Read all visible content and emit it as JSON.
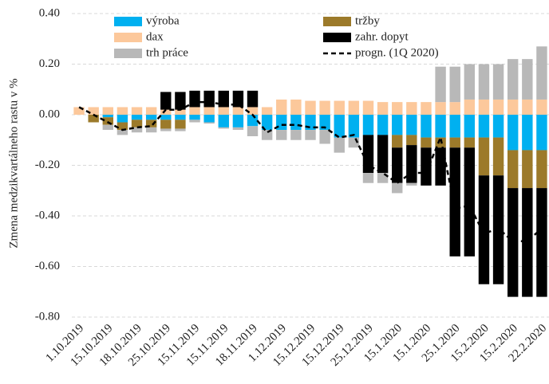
{
  "chart_data": {
    "type": "bar",
    "stacked": true,
    "y_label": "Zmena medzikvartálneho rastu v %",
    "categories": [
      "1.10.2019",
      null,
      "15.10.2019",
      null,
      "18.10.2019",
      null,
      "25.10.2019",
      null,
      "15.11.2019",
      null,
      "15.11.2019",
      null,
      "18.11.2019",
      null,
      "1.12.2019",
      null,
      "15.12.2019",
      null,
      "15.12.2019",
      null,
      "25.12.2019",
      null,
      "15.1.2020",
      null,
      "15.1.2020",
      null,
      "25.1.2020",
      null,
      "15.2.2020",
      null,
      "15.2.2020",
      null,
      "22.2.2020"
    ],
    "series": [
      {
        "name": "výroba",
        "color": "#00b0f0",
        "values": [
          0,
          0,
          -0.01,
          -0.03,
          -0.02,
          -0.02,
          -0.02,
          -0.02,
          -0.02,
          -0.03,
          -0.05,
          -0.05,
          -0.045,
          -0.06,
          -0.06,
          -0.06,
          -0.06,
          -0.06,
          -0.09,
          -0.09,
          -0.08,
          -0.08,
          -0.08,
          -0.08,
          -0.09,
          -0.09,
          -0.09,
          -0.09,
          -0.09,
          -0.09,
          -0.14,
          -0.14,
          -0.14
        ]
      },
      {
        "name": "tržby",
        "color": "#9c7a2a",
        "values": [
          0,
          -0.03,
          -0.03,
          -0.03,
          -0.03,
          -0.03,
          -0.035,
          -0.035,
          0,
          0,
          0,
          0,
          0,
          0,
          0,
          0,
          0,
          0,
          0,
          0,
          0,
          0,
          -0.05,
          -0.04,
          -0.04,
          -0.04,
          -0.04,
          -0.04,
          -0.15,
          -0.15,
          -0.15,
          -0.15,
          -0.15
        ]
      },
      {
        "name": "dax",
        "color": "#fcc89b",
        "values": [
          0.03,
          0.03,
          0.03,
          0.03,
          0.03,
          0.03,
          0.02,
          0.02,
          0.03,
          0.03,
          0.03,
          0.03,
          0.03,
          0.03,
          0.06,
          0.06,
          0.055,
          0.055,
          0.055,
          0.055,
          0.055,
          0.05,
          0.05,
          0.05,
          0.05,
          0.05,
          0.05,
          0.06,
          0.06,
          0.06,
          0.06,
          0.06,
          0.06
        ]
      },
      {
        "name": "zahr. dopyt",
        "color": "#000000",
        "values": [
          0,
          0,
          0,
          0,
          0,
          0,
          0.07,
          0.07,
          0.065,
          0.065,
          0.065,
          0.065,
          0.065,
          0,
          0,
          0,
          0,
          0,
          0,
          0,
          -0.15,
          -0.15,
          -0.14,
          -0.15,
          -0.15,
          -0.15,
          -0.43,
          -0.43,
          -0.43,
          -0.43,
          -0.43,
          -0.43,
          -0.43
        ]
      },
      {
        "name": "trh práce",
        "color": "#b8b8b8",
        "values": [
          0,
          0,
          -0.02,
          -0.02,
          -0.02,
          -0.02,
          -0.01,
          -0.01,
          -0.01,
          -0.005,
          -0.005,
          -0.01,
          -0.04,
          -0.04,
          -0.04,
          -0.04,
          -0.04,
          -0.055,
          -0.06,
          -0.04,
          -0.04,
          -0.04,
          -0.04,
          -0.01,
          0,
          0.14,
          0.14,
          0.14,
          0.14,
          0.14,
          0.16,
          0.16,
          0.21
        ]
      },
      {
        "name": "progn. (1Q 2020)",
        "type": "line",
        "dashed": true,
        "color": "#000000",
        "values": [
          0.03,
          0.0,
          -0.03,
          -0.06,
          -0.05,
          -0.045,
          0.02,
          0.02,
          0.05,
          0.05,
          0.04,
          0.04,
          0.0,
          -0.07,
          -0.04,
          -0.04,
          -0.05,
          -0.05,
          -0.09,
          -0.08,
          -0.2,
          -0.23,
          -0.27,
          -0.23,
          -0.23,
          -0.09,
          -0.37,
          -0.36,
          -0.47,
          -0.45,
          -0.5,
          -0.5,
          -0.45
        ]
      }
    ],
    "ylim": [
      -0.8,
      0.4
    ],
    "yticks": [
      {
        "value": -0.8,
        "label": "-0.80"
      },
      {
        "value": -0.6,
        "label": "-0.60"
      },
      {
        "value": -0.4,
        "label": "-0.40"
      },
      {
        "value": -0.2,
        "label": "-0.20"
      },
      {
        "value": 0,
        "label": "0.00"
      },
      {
        "value": 0.2,
        "label": "0.20"
      },
      {
        "value": 0.4,
        "label": "0.40"
      }
    ],
    "grid": true,
    "legend": "top"
  }
}
